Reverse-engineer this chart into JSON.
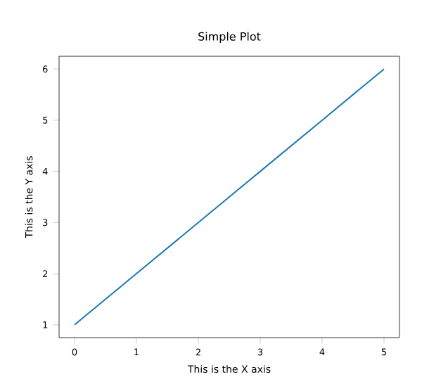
{
  "chart_data": {
    "type": "line",
    "title": "Simple Plot",
    "xlabel": "This is the X axis",
    "ylabel": "This is the Y axis",
    "x": [
      0,
      1,
      2,
      3,
      4,
      5
    ],
    "series": [
      {
        "color": "#1f77b4",
        "values": [
          1,
          2,
          3,
          4,
          5,
          6
        ]
      }
    ],
    "xlim": [
      -0.25,
      5.25
    ],
    "ylim": [
      0.75,
      6.25
    ],
    "xticks": [
      0,
      1,
      2,
      3,
      4,
      5
    ],
    "yticks": [
      1,
      2,
      3,
      4,
      5,
      6
    ],
    "grid": false,
    "legend": false
  }
}
